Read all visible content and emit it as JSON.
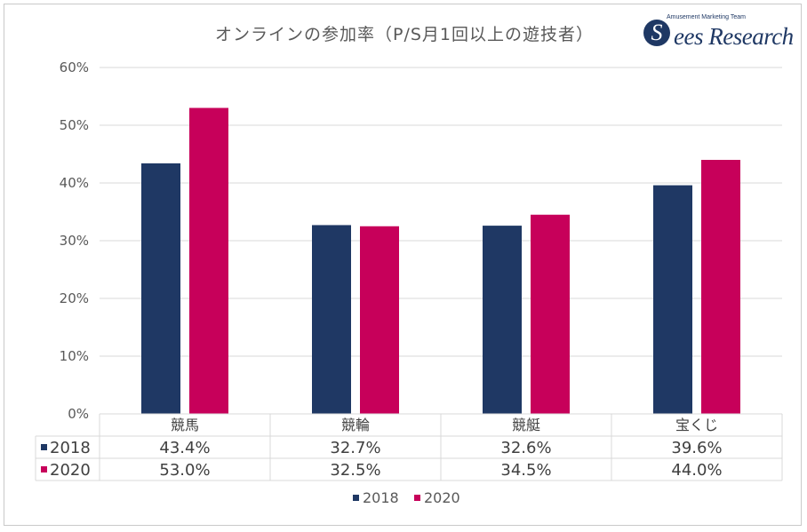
{
  "title": "オンラインの参加率（P/S月1回以上の遊技者）",
  "logo": {
    "tagline": "Amusement Marketing Team",
    "brand_initial": "S",
    "brand_rest": "ees Research"
  },
  "colors": {
    "2018": "#1f3864",
    "2020": "#c7005a",
    "grid": "#d9d9d9",
    "text": "#595959"
  },
  "chart_data": {
    "type": "bar",
    "title": "オンラインの参加率（P/S月1回以上の遊技者）",
    "categories": [
      "競馬",
      "競輪",
      "競艇",
      "宝くじ"
    ],
    "series": [
      {
        "name": "2018",
        "values": [
          43.4,
          32.7,
          32.6,
          39.6
        ],
        "labels": [
          "43.4%",
          "32.7%",
          "32.6%",
          "39.6%"
        ]
      },
      {
        "name": "2020",
        "values": [
          53.0,
          32.5,
          34.5,
          44.0
        ],
        "labels": [
          "53.0%",
          "32.5%",
          "34.5%",
          "44.0%"
        ]
      }
    ],
    "yticks": [
      0,
      10,
      20,
      30,
      40,
      50,
      60
    ],
    "ytick_labels": [
      "0%",
      "10%",
      "20%",
      "30%",
      "40%",
      "50%",
      "60%"
    ],
    "ylim": [
      0,
      60
    ],
    "grid": true,
    "data_table": true,
    "legend": {
      "position": "bottom",
      "entries": [
        "2018",
        "2020"
      ]
    },
    "xlabel": "",
    "ylabel": ""
  }
}
